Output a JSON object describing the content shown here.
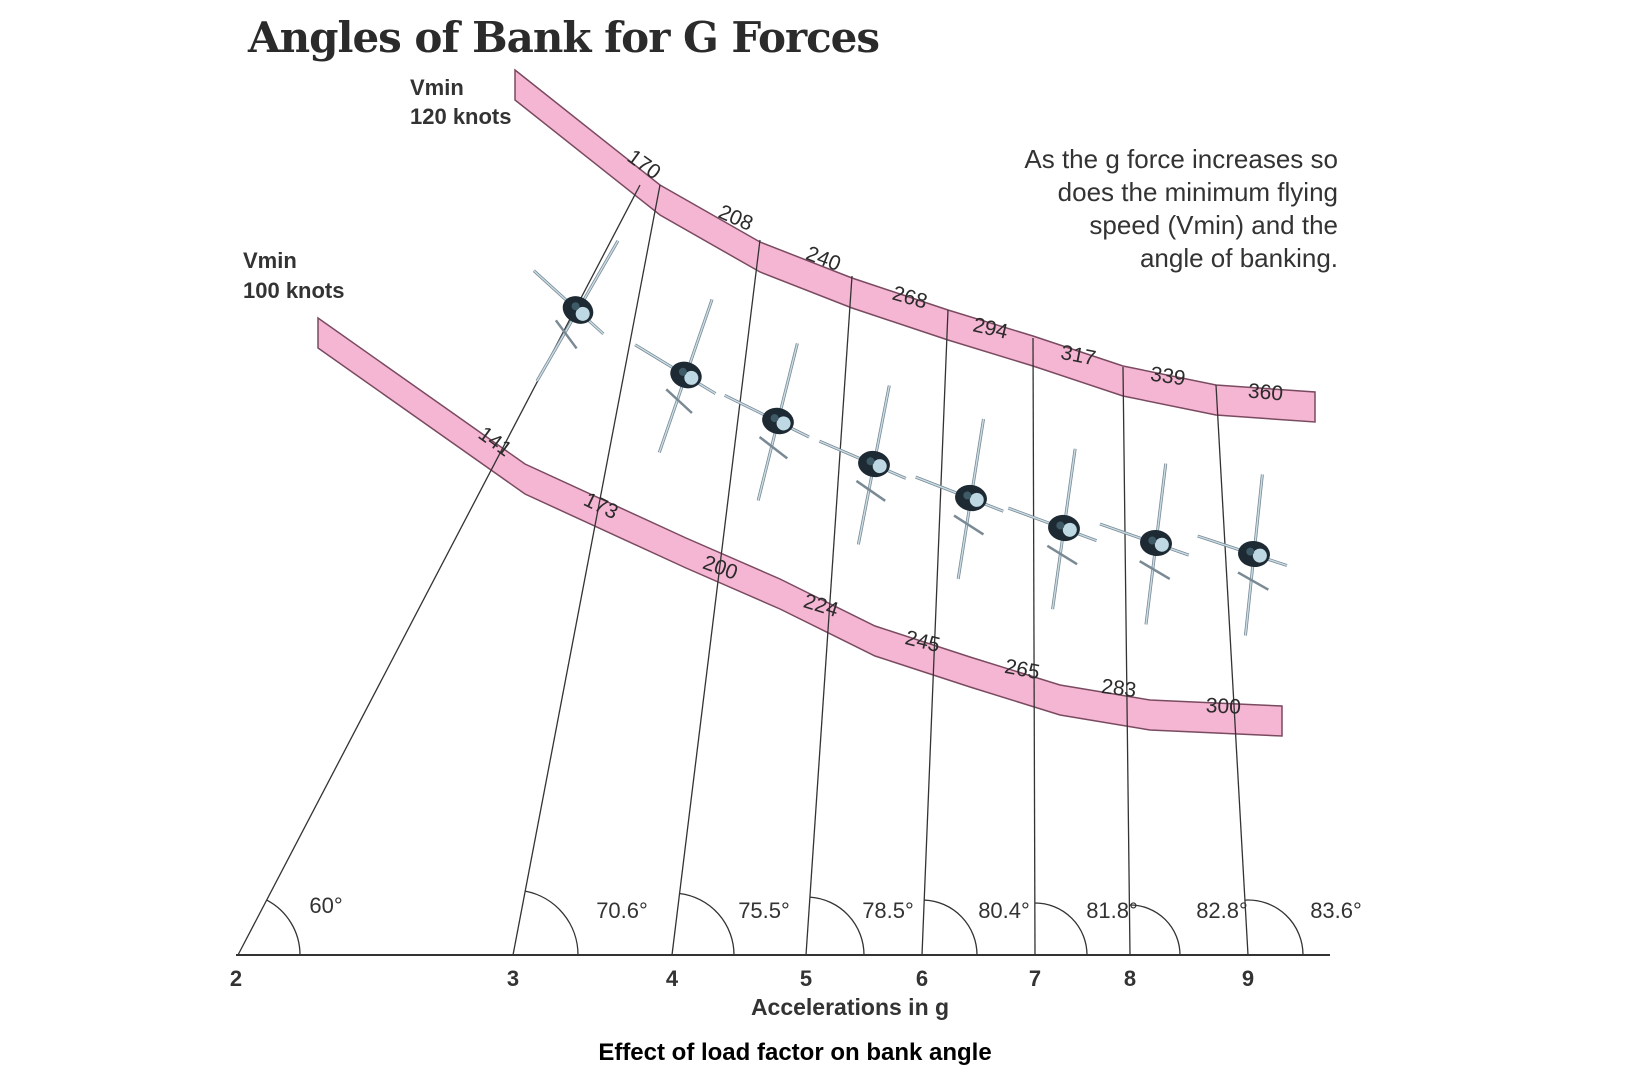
{
  "title": "Angles of Bank for G Forces",
  "caption": "Effect of load factor on bank angle",
  "note_lines": [
    "As the g force increases so",
    "does the minimum flying",
    "speed (Vmin) and the",
    "angle of banking."
  ],
  "xlabel": "Accelerations in g",
  "band_color": "#f4b6d2",
  "upper_band": {
    "label_1": "Vmin",
    "label_2": "120 knots",
    "values": [
      "170",
      "208",
      "240",
      "268",
      "294",
      "317",
      "339",
      "360"
    ]
  },
  "lower_band": {
    "label_1": "Vmin",
    "label_2": "100 knots",
    "values": [
      "141",
      "173",
      "200",
      "224",
      "245",
      "265",
      "283",
      "300"
    ]
  },
  "g_ticks": [
    "2",
    "3",
    "4",
    "5",
    "6",
    "7",
    "8",
    "9"
  ],
  "angles": [
    "60°",
    "70.6°",
    "75.5°",
    "78.5°",
    "80.4°",
    "81.8°",
    "82.8°",
    "83.6°"
  ],
  "aircraft_icon": "jet-aircraft-icon"
}
